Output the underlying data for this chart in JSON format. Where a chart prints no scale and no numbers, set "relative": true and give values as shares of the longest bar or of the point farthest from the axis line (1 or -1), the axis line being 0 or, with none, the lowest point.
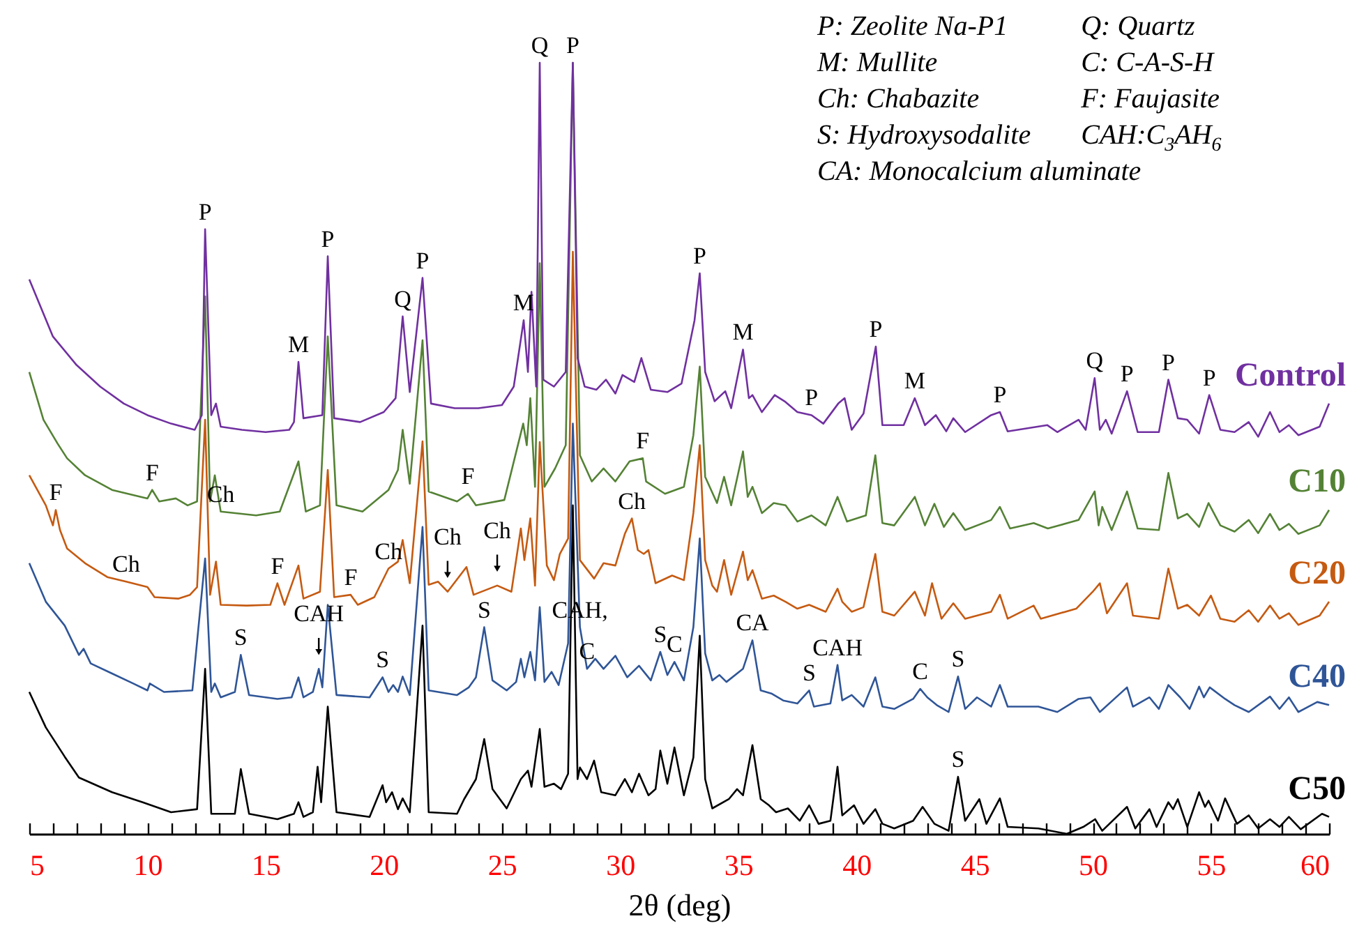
{
  "chart_data": {
    "type": "line",
    "relative": true,
    "xlabel": "2θ (deg)",
    "xlim": [
      5,
      60
    ],
    "tick_labels": "x",
    "xticks": [
      5,
      {
        "value": 6,
        "label": null
      },
      {
        "value": 7,
        "label": null
      },
      {
        "value": 8,
        "label": null
      },
      {
        "value": 9,
        "label": null
      },
      10,
      {
        "value": 11,
        "label": null
      },
      {
        "value": 12,
        "label": null
      },
      {
        "value": 13,
        "label": null
      },
      {
        "value": 14,
        "label": null
      },
      15,
      {
        "value": 16,
        "label": null
      },
      {
        "value": 17,
        "label": null
      },
      {
        "value": 18,
        "label": null
      },
      {
        "value": 19,
        "label": null
      },
      20,
      {
        "value": 21,
        "label": null
      },
      {
        "value": 22,
        "label": null
      },
      {
        "value": 23,
        "label": null
      },
      {
        "value": 24,
        "label": null
      },
      25,
      {
        "value": 26,
        "label": null
      },
      {
        "value": 27,
        "label": null
      },
      {
        "value": 28,
        "label": null
      },
      {
        "value": 29,
        "label": null
      },
      30,
      {
        "value": 31,
        "label": null
      },
      {
        "value": 32,
        "label": null
      },
      {
        "value": 33,
        "label": null
      },
      {
        "value": 34,
        "label": null
      },
      35,
      {
        "value": 36,
        "label": null
      },
      {
        "value": 37,
        "label": null
      },
      {
        "value": 38,
        "label": null
      },
      {
        "value": 39,
        "label": null
      },
      40,
      {
        "value": 41,
        "label": null
      },
      {
        "value": 42,
        "label": null
      },
      {
        "value": 43,
        "label": null
      },
      {
        "value": 44,
        "label": null
      },
      45,
      {
        "value": 46,
        "label": null
      },
      {
        "value": 47,
        "label": null
      },
      {
        "value": 48,
        "label": null
      },
      {
        "value": 49,
        "label": null
      },
      50,
      {
        "value": 51,
        "label": null
      },
      {
        "value": 52,
        "label": null
      },
      {
        "value": 53,
        "label": null
      },
      {
        "value": 54,
        "label": null
      },
      55,
      {
        "value": 56,
        "label": null
      },
      {
        "value": 57,
        "label": null
      },
      {
        "value": 58,
        "label": null
      },
      {
        "value": 59,
        "label": null
      },
      60
    ],
    "series": [
      {
        "name": "Control",
        "color": "#7030a0",
        "x": [
          5,
          6,
          7,
          8,
          9,
          10,
          11,
          12,
          12.3,
          12.44,
          12.7,
          12.9,
          13.1,
          14,
          15,
          16,
          16.2,
          16.39,
          16.6,
          17.4,
          17.63,
          17.9,
          19,
          20,
          20.5,
          20.8,
          21.1,
          21.64,
          22,
          23,
          24,
          25,
          25.5,
          25.92,
          26.1,
          26.25,
          26.45,
          26.6,
          26.75,
          27.2,
          27.7,
          28,
          28.2,
          28.5,
          29,
          29.4,
          29.8,
          30.1,
          30.6,
          30.9,
          31.3,
          32,
          32.6,
          33.15,
          33.37,
          33.6,
          34,
          34.45,
          34.7,
          35.2,
          35.45,
          35.6,
          36,
          36.54,
          36.96,
          37.5,
          38.1,
          38.6,
          39.23,
          39.5,
          39.8,
          40.3,
          40.82,
          41.1,
          42,
          42.47,
          42.9,
          43.36,
          43.8,
          44.1,
          44.6,
          45.7,
          46.07,
          46.4,
          48.08,
          48.5,
          49.4,
          49.7,
          50.08,
          50.3,
          50.55,
          50.8,
          51.45,
          51.9,
          52.8,
          53.2,
          53.6,
          54,
          54.5,
          54.93,
          55.4,
          56,
          56.6,
          57,
          57.5,
          57.9,
          58.3,
          58.7,
          59.6,
          60
        ],
        "values": [
          0.719,
          0.645,
          0.608,
          0.58,
          0.558,
          0.543,
          0.532,
          0.524,
          0.543,
          0.784,
          0.543,
          0.558,
          0.528,
          0.524,
          0.521,
          0.524,
          0.534,
          0.612,
          0.539,
          0.543,
          0.749,
          0.539,
          0.534,
          0.547,
          0.565,
          0.671,
          0.573,
          0.721,
          0.558,
          0.552,
          0.552,
          0.556,
          0.58,
          0.666,
          0.599,
          0.703,
          0.58,
          1,
          0.589,
          0.58,
          0.599,
          1,
          0.617,
          0.58,
          0.576,
          0.589,
          0.571,
          0.595,
          0.586,
          0.617,
          0.576,
          0.573,
          0.584,
          0.666,
          0.727,
          0.599,
          0.561,
          0.574,
          0.552,
          0.628,
          0.565,
          0.569,
          0.547,
          0.569,
          0.561,
          0.547,
          0.543,
          0.532,
          0.558,
          0.565,
          0.524,
          0.545,
          0.632,
          0.53,
          0.53,
          0.565,
          0.53,
          0.543,
          0.522,
          0.539,
          0.521,
          0.543,
          0.547,
          0.522,
          0.53,
          0.521,
          0.537,
          0.524,
          0.591,
          0.524,
          0.537,
          0.519,
          0.574,
          0.521,
          0.521,
          0.589,
          0.539,
          0.537,
          0.519,
          0.569,
          0.524,
          0.521,
          0.534,
          0.515,
          0.547,
          0.521,
          0.53,
          0.517,
          0.528,
          0.558
        ]
      },
      {
        "name": "C10",
        "color": "#548235",
        "x": [
          5,
          5.6,
          6.2,
          6.6,
          7.36,
          8.5,
          10,
          10.2,
          10.5,
          11.2,
          11.7,
          12.1,
          12.44,
          12.65,
          12.85,
          13.1,
          14.6,
          15.6,
          16.39,
          16.7,
          17.3,
          17.63,
          18,
          19.1,
          20.2,
          20.6,
          20.8,
          21.1,
          21.64,
          21.9,
          23.1,
          23.56,
          23.9,
          25.1,
          25.9,
          26.05,
          26.2,
          26.4,
          26.6,
          26.8,
          27.25,
          27.7,
          28,
          28.3,
          28.8,
          29.3,
          29.8,
          30.4,
          30.96,
          31.1,
          31.9,
          32.7,
          33.1,
          33.37,
          33.6,
          34.1,
          34.4,
          34.7,
          35.2,
          35.4,
          35.6,
          36,
          36.5,
          37,
          37.5,
          38.1,
          38.7,
          39.2,
          39.6,
          40.4,
          40.8,
          41.1,
          41.6,
          42.47,
          42.9,
          43.3,
          43.7,
          44.1,
          44.6,
          45.7,
          46.07,
          46.5,
          47.5,
          48.1,
          49.4,
          50.08,
          50.25,
          50.4,
          50.8,
          51.45,
          51.9,
          52.8,
          53.2,
          53.6,
          54,
          54.5,
          54.9,
          55.4,
          56,
          56.6,
          57,
          57.5,
          57.9,
          58.3,
          58.7,
          59.6,
          60
        ],
        "values": [
          0.599,
          0.537,
          0.506,
          0.487,
          0.465,
          0.446,
          0.435,
          0.446,
          0.431,
          0.435,
          0.426,
          0.431,
          0.697,
          0.431,
          0.465,
          0.418,
          0.413,
          0.418,
          0.483,
          0.418,
          0.426,
          0.645,
          0.426,
          0.418,
          0.446,
          0.472,
          0.524,
          0.454,
          0.64,
          0.444,
          0.431,
          0.441,
          0.426,
          0.433,
          0.532,
          0.504,
          0.565,
          0.45,
          0.74,
          0.45,
          0.474,
          0.504,
          1,
          0.491,
          0.457,
          0.474,
          0.457,
          0.483,
          0.487,
          0.457,
          0.441,
          0.45,
          0.517,
          0.606,
          0.463,
          0.429,
          0.463,
          0.426,
          0.496,
          0.437,
          0.45,
          0.416,
          0.429,
          0.426,
          0.405,
          0.413,
          0.4,
          0.437,
          0.405,
          0.413,
          0.491,
          0.403,
          0.4,
          0.437,
          0.4,
          0.428,
          0.398,
          0.416,
          0.394,
          0.407,
          0.424,
          0.396,
          0.403,
          0.396,
          0.407,
          0.444,
          0.4,
          0.424,
          0.394,
          0.444,
          0.396,
          0.394,
          0.468,
          0.409,
          0.415,
          0.398,
          0.429,
          0.4,
          0.392,
          0.407,
          0.39,
          0.415,
          0.394,
          0.402,
          0.389,
          0.4,
          0.42
        ]
      },
      {
        "name": "C20",
        "color": "#c55a11",
        "x": [
          5,
          5.7,
          6,
          6.12,
          6.3,
          6.6,
          7.36,
          8.3,
          9.1,
          10,
          10.3,
          11.3,
          11.8,
          12.1,
          12.44,
          12.65,
          12.9,
          13.1,
          14.2,
          15.2,
          15.5,
          15.8,
          16.39,
          16.6,
          17.3,
          17.63,
          17.9,
          18.6,
          18.9,
          19.6,
          20.2,
          20.6,
          20.8,
          21.1,
          21.64,
          21.9,
          22.3,
          22.7,
          23.5,
          23.8,
          24.8,
          25.4,
          25.8,
          25.95,
          26.2,
          26.4,
          26.6,
          26.9,
          27.2,
          27.45,
          27.8,
          28,
          28.3,
          28.9,
          29.3,
          29.8,
          30.2,
          30.5,
          30.75,
          31,
          31.2,
          31.5,
          32.2,
          32.7,
          33.1,
          33.37,
          33.6,
          33.9,
          34.1,
          34.4,
          34.7,
          35.2,
          35.4,
          35.6,
          36,
          36.5,
          37,
          37.5,
          38,
          38.7,
          39.2,
          39.4,
          39.8,
          40.3,
          40.8,
          41.1,
          41.6,
          42.47,
          42.9,
          43.2,
          43.6,
          44.1,
          44.6,
          45.7,
          46.07,
          46.4,
          47.5,
          47.8,
          49.3,
          50,
          50.3,
          50.6,
          51.45,
          51.7,
          52.8,
          53.2,
          53.6,
          54,
          54.5,
          55,
          55.4,
          56,
          56.6,
          57,
          57.5,
          57.9,
          58.3,
          58.7,
          59.6,
          60
        ],
        "values": [
          0.465,
          0.426,
          0.4,
          0.42,
          0.394,
          0.37,
          0.351,
          0.333,
          0.327,
          0.32,
          0.307,
          0.305,
          0.31,
          0.32,
          0.537,
          0.31,
          0.353,
          0.297,
          0.296,
          0.297,
          0.325,
          0.297,
          0.348,
          0.305,
          0.314,
          0.472,
          0.307,
          0.31,
          0.297,
          0.307,
          0.344,
          0.353,
          0.381,
          0.325,
          0.509,
          0.323,
          0.327,
          0.314,
          0.346,
          0.31,
          0.322,
          0.314,
          0.396,
          0.355,
          0.409,
          0.322,
          0.508,
          0.348,
          0.329,
          0.363,
          0.383,
          0.755,
          0.355,
          0.331,
          0.351,
          0.348,
          0.389,
          0.409,
          0.368,
          0.363,
          0.368,
          0.325,
          0.335,
          0.329,
          0.416,
          0.504,
          0.355,
          0.322,
          0.314,
          0.355,
          0.31,
          0.366,
          0.329,
          0.342,
          0.305,
          0.309,
          0.301,
          0.292,
          0.297,
          0.288,
          0.318,
          0.301,
          0.288,
          0.294,
          0.363,
          0.288,
          0.283,
          0.314,
          0.283,
          0.325,
          0.279,
          0.299,
          0.279,
          0.288,
          0.31,
          0.279,
          0.296,
          0.279,
          0.292,
          0.314,
          0.325,
          0.286,
          0.325,
          0.283,
          0.279,
          0.344,
          0.292,
          0.297,
          0.283,
          0.309,
          0.279,
          0.275,
          0.29,
          0.275,
          0.296,
          0.279,
          0.286,
          0.271,
          0.283,
          0.301
        ]
      },
      {
        "name": "C40",
        "color": "#2f5597",
        "x": [
          5,
          5.7,
          6.5,
          7.1,
          7.3,
          7.6,
          8.5,
          9.4,
          10,
          10.1,
          10.7,
          11.9,
          12.44,
          12.7,
          12.85,
          13.1,
          13.7,
          13.95,
          14.3,
          15.5,
          16.1,
          16.39,
          16.6,
          17,
          17.25,
          17.4,
          17.63,
          18,
          19.4,
          19.95,
          20.2,
          20.4,
          20.6,
          20.8,
          21.1,
          21.64,
          21.9,
          23.1,
          23.6,
          23.9,
          24.25,
          24.6,
          25.2,
          25.6,
          25.8,
          25.95,
          26.2,
          26.4,
          26.6,
          26.8,
          27.1,
          27.4,
          27.8,
          28,
          28.3,
          28.6,
          28.95,
          29.3,
          29.8,
          30.3,
          30.8,
          31.3,
          31.7,
          32,
          32.3,
          32.7,
          33.1,
          33.37,
          33.6,
          33.9,
          34.2,
          34.5,
          35.2,
          35.6,
          35.95,
          36.4,
          36.9,
          37.5,
          38,
          38.2,
          38.9,
          39.2,
          39.4,
          39.8,
          40.3,
          40.8,
          41.1,
          41.6,
          42.4,
          42.7,
          43,
          43.4,
          43.9,
          44.3,
          44.6,
          45.1,
          45.7,
          46.07,
          46.4,
          47.7,
          48.5,
          49.4,
          49.9,
          50.3,
          51.45,
          51.7,
          52.4,
          52.8,
          53.2,
          53.7,
          54.1,
          54.5,
          54.7,
          54.95,
          55.6,
          56,
          56.6,
          57.5,
          57.9,
          58.3,
          58.7,
          59.5,
          60
        ],
        "values": [
          0.351,
          0.301,
          0.27,
          0.232,
          0.24,
          0.221,
          0.208,
          0.195,
          0.186,
          0.195,
          0.184,
          0.186,
          0.357,
          0.184,
          0.195,
          0.177,
          0.184,
          0.232,
          0.18,
          0.175,
          0.177,
          0.203,
          0.177,
          0.184,
          0.214,
          0.19,
          0.297,
          0.18,
          0.177,
          0.203,
          0.184,
          0.193,
          0.184,
          0.204,
          0.18,
          0.398,
          0.186,
          0.18,
          0.19,
          0.203,
          0.268,
          0.199,
          0.186,
          0.197,
          0.227,
          0.203,
          0.236,
          0.199,
          0.294,
          0.197,
          0.21,
          0.193,
          0.247,
          0.532,
          0.268,
          0.214,
          0.227,
          0.214,
          0.231,
          0.203,
          0.218,
          0.199,
          0.236,
          0.206,
          0.223,
          0.199,
          0.268,
          0.383,
          0.234,
          0.199,
          0.206,
          0.197,
          0.214,
          0.251,
          0.186,
          0.182,
          0.173,
          0.169,
          0.186,
          0.165,
          0.169,
          0.219,
          0.173,
          0.18,
          0.165,
          0.203,
          0.165,
          0.162,
          0.175,
          0.188,
          0.177,
          0.167,
          0.158,
          0.204,
          0.162,
          0.177,
          0.165,
          0.193,
          0.165,
          0.165,
          0.158,
          0.175,
          0.177,
          0.158,
          0.19,
          0.165,
          0.177,
          0.162,
          0.193,
          0.177,
          0.162,
          0.191,
          0.177,
          0.19,
          0.175,
          0.167,
          0.158,
          0.178,
          0.162,
          0.177,
          0.158,
          0.171,
          0.167
        ]
      },
      {
        "name": "C50",
        "color": "#000000",
        "x": [
          5,
          5.7,
          6.5,
          7.1,
          8.5,
          9.8,
          11,
          12.1,
          12.44,
          12.7,
          13.7,
          13.95,
          14.3,
          15.5,
          16.2,
          16.39,
          16.6,
          17,
          17.2,
          17.35,
          17.63,
          18,
          19.4,
          19.95,
          20.1,
          20.35,
          20.6,
          20.8,
          21.1,
          21.64,
          21.9,
          23.1,
          23.4,
          23.9,
          24.25,
          24.6,
          25.2,
          25.8,
          26.1,
          26.25,
          26.6,
          26.8,
          27.2,
          27.5,
          27.8,
          28,
          28.2,
          28.3,
          28.6,
          28.9,
          29.2,
          29.8,
          30.2,
          30.5,
          30.8,
          31.2,
          31.5,
          31.7,
          32,
          32.3,
          32.7,
          33.1,
          33.37,
          33.6,
          33.9,
          34.6,
          34.95,
          35.2,
          35.6,
          35.95,
          36.3,
          36.6,
          37.1,
          37.6,
          38,
          38.4,
          38.9,
          39.2,
          39.4,
          39.9,
          40.3,
          40.8,
          41.1,
          41.6,
          42.4,
          42.8,
          43.3,
          43.9,
          44.3,
          44.6,
          45.2,
          45.5,
          46.07,
          46.4,
          47.7,
          48.9,
          49.6,
          50.1,
          50.4,
          51.45,
          51.8,
          52.4,
          52.7,
          53.2,
          53.4,
          53.6,
          54,
          54.5,
          54.75,
          54.9,
          55.3,
          55.6,
          56.1,
          56.6,
          57,
          57.5,
          57.9,
          58.3,
          58.8,
          59.7,
          60
        ],
        "values": [
          0.184,
          0.138,
          0.1,
          0.073,
          0.054,
          0.041,
          0.028,
          0.032,
          0.214,
          0.026,
          0.026,
          0.084,
          0.026,
          0.019,
          0.026,
          0.041,
          0.022,
          0.028,
          0.087,
          0.041,
          0.165,
          0.028,
          0.022,
          0.063,
          0.041,
          0.054,
          0.032,
          0.046,
          0.028,
          0.27,
          0.028,
          0.026,
          0.045,
          0.071,
          0.123,
          0.058,
          0.033,
          0.071,
          0.082,
          0.061,
          0.136,
          0.061,
          0.065,
          0.058,
          0.078,
          0.426,
          0.071,
          0.086,
          0.071,
          0.095,
          0.054,
          0.05,
          0.071,
          0.054,
          0.078,
          0.05,
          0.058,
          0.108,
          0.065,
          0.112,
          0.05,
          0.099,
          0.257,
          0.071,
          0.033,
          0.045,
          0.058,
          0.05,
          0.115,
          0.045,
          0.037,
          0.028,
          0.033,
          0.017,
          0.037,
          0.013,
          0.017,
          0.087,
          0.024,
          0.037,
          0.013,
          0.032,
          0.013,
          0.007,
          0.017,
          0.035,
          0.013,
          0.004,
          0.074,
          0.017,
          0.045,
          0.013,
          0.046,
          0.009,
          0.007,
          0,
          0.009,
          0.019,
          0.004,
          0.035,
          0.007,
          0.032,
          0.009,
          0.041,
          0.032,
          0.045,
          0.009,
          0.054,
          0.035,
          0.043,
          0.017,
          0.046,
          0.013,
          0.024,
          0.007,
          0.019,
          0.009,
          0.022,
          0.006,
          0.026,
          0.022
        ]
      }
    ],
    "annotations": [
      "P: Zeolite Na-P1",
      "Q: Quartz",
      "M: Mullite",
      "C: C-A-S-H",
      "Ch: Chabazite",
      "F: Faujasite",
      "S: Hydroxysodalite",
      "CAH:C$_{3}$AH$_{6}$",
      "CA: Monocalcium aluminate",
      {
        "text": "P",
        "x": 12.44,
        "y": 0.784
      },
      {
        "text": "M",
        "x": 16.39,
        "y": 0.612
      },
      {
        "text": "P",
        "x": 17.63,
        "y": 0.749
      },
      {
        "text": "Q",
        "x": 20.8,
        "y": 0.671
      },
      {
        "text": "P",
        "x": 21.64,
        "y": 0.721
      },
      {
        "text": "M",
        "x": 25.92,
        "y": 0.666
      },
      {
        "text": "Q",
        "x": 26.6,
        "y": 1
      },
      {
        "text": "P",
        "x": 28,
        "y": 1
      },
      {
        "text": "P",
        "x": 33.37,
        "y": 0.727
      },
      {
        "text": "M",
        "x": 35.2,
        "y": 0.628
      },
      {
        "text": "P",
        "x": 38.1,
        "y": 0.543
      },
      {
        "text": "P",
        "x": 40.82,
        "y": 0.632
      },
      {
        "text": "M",
        "x": 42.47,
        "y": 0.565
      },
      {
        "text": "P",
        "x": 46.07,
        "y": 0.547
      },
      {
        "text": "Q",
        "x": 50.08,
        "y": 0.591
      },
      {
        "text": "P",
        "x": 51.45,
        "y": 0.574
      },
      {
        "text": "P",
        "x": 53.2,
        "y": 0.589
      },
      {
        "text": "P",
        "x": 54.93,
        "y": 0.569
      },
      {
        "text": "F",
        "x": 10.2,
        "y": 0.446
      },
      {
        "text": "Ch",
        "x": 13.1,
        "y": 0.418
      },
      {
        "text": "F",
        "x": 23.56,
        "y": 0.441
      },
      {
        "text": "F",
        "x": 30.96,
        "y": 0.487
      },
      {
        "text": "F",
        "x": 6.12,
        "y": 0.42
      },
      {
        "text": "Ch",
        "x": 9.1,
        "y": 0.327
      },
      {
        "text": "F",
        "x": 15.5,
        "y": 0.325
      },
      {
        "text": "F",
        "x": 18.6,
        "y": 0.31
      },
      {
        "text": "Ch",
        "x": 20.2,
        "y": 0.344
      },
      {
        "text": "Ch",
        "x": 22.7,
        "y": 0.314
      },
      {
        "text": "Ch",
        "x": 24.8,
        "y": 0.322
      },
      {
        "text": "Ch",
        "x": 30.5,
        "y": 0.409
      },
      {
        "text": "S",
        "x": 13.95,
        "y": 0.232
      },
      {
        "text": "CAH",
        "x": 17.25,
        "y": 0.214
      },
      {
        "text": "S",
        "x": 19.95,
        "y": 0.203
      },
      {
        "text": "S",
        "x": 24.25,
        "y": 0.268
      },
      {
        "text": "CAH,",
        "x": 28.3,
        "y": 0.268
      },
      {
        "text": "C",
        "x": 28.6,
        "y": 0.214
      },
      {
        "text": "S",
        "x": 31.7,
        "y": 0.236
      },
      {
        "text": "C",
        "x": 32.3,
        "y": 0.223
      },
      {
        "text": "CA",
        "x": 35.6,
        "y": 0.251
      },
      {
        "text": "S",
        "x": 38,
        "y": 0.186
      },
      {
        "text": "CAH",
        "x": 39.2,
        "y": 0.219
      },
      {
        "text": "C",
        "x": 42.7,
        "y": 0.188
      },
      {
        "text": "S",
        "x": 44.3,
        "y": 0.204
      },
      {
        "text": "S",
        "x": 44.3,
        "y": 0.074
      }
    ]
  }
}
